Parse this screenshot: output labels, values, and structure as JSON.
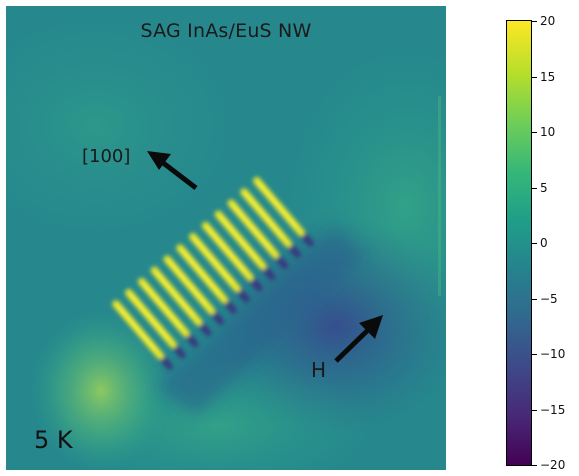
{
  "figure": {
    "title": "SAG InAs/EuS NW",
    "direction_label": "[100]",
    "field_label": "H",
    "temperature_label": "5 K",
    "nanowire_count": 12,
    "icons": [
      "direction-arrow-icon",
      "field-arrow-icon"
    ]
  },
  "colorbar": {
    "min": -20,
    "max": 20,
    "ticks": [
      "20",
      "15",
      "10",
      "5",
      "0",
      "−5",
      "−10",
      "−15",
      "−20"
    ],
    "colormap": "viridis",
    "colors": {
      "low": "#440154",
      "mid": "#21918c",
      "high": "#fde725"
    }
  }
}
